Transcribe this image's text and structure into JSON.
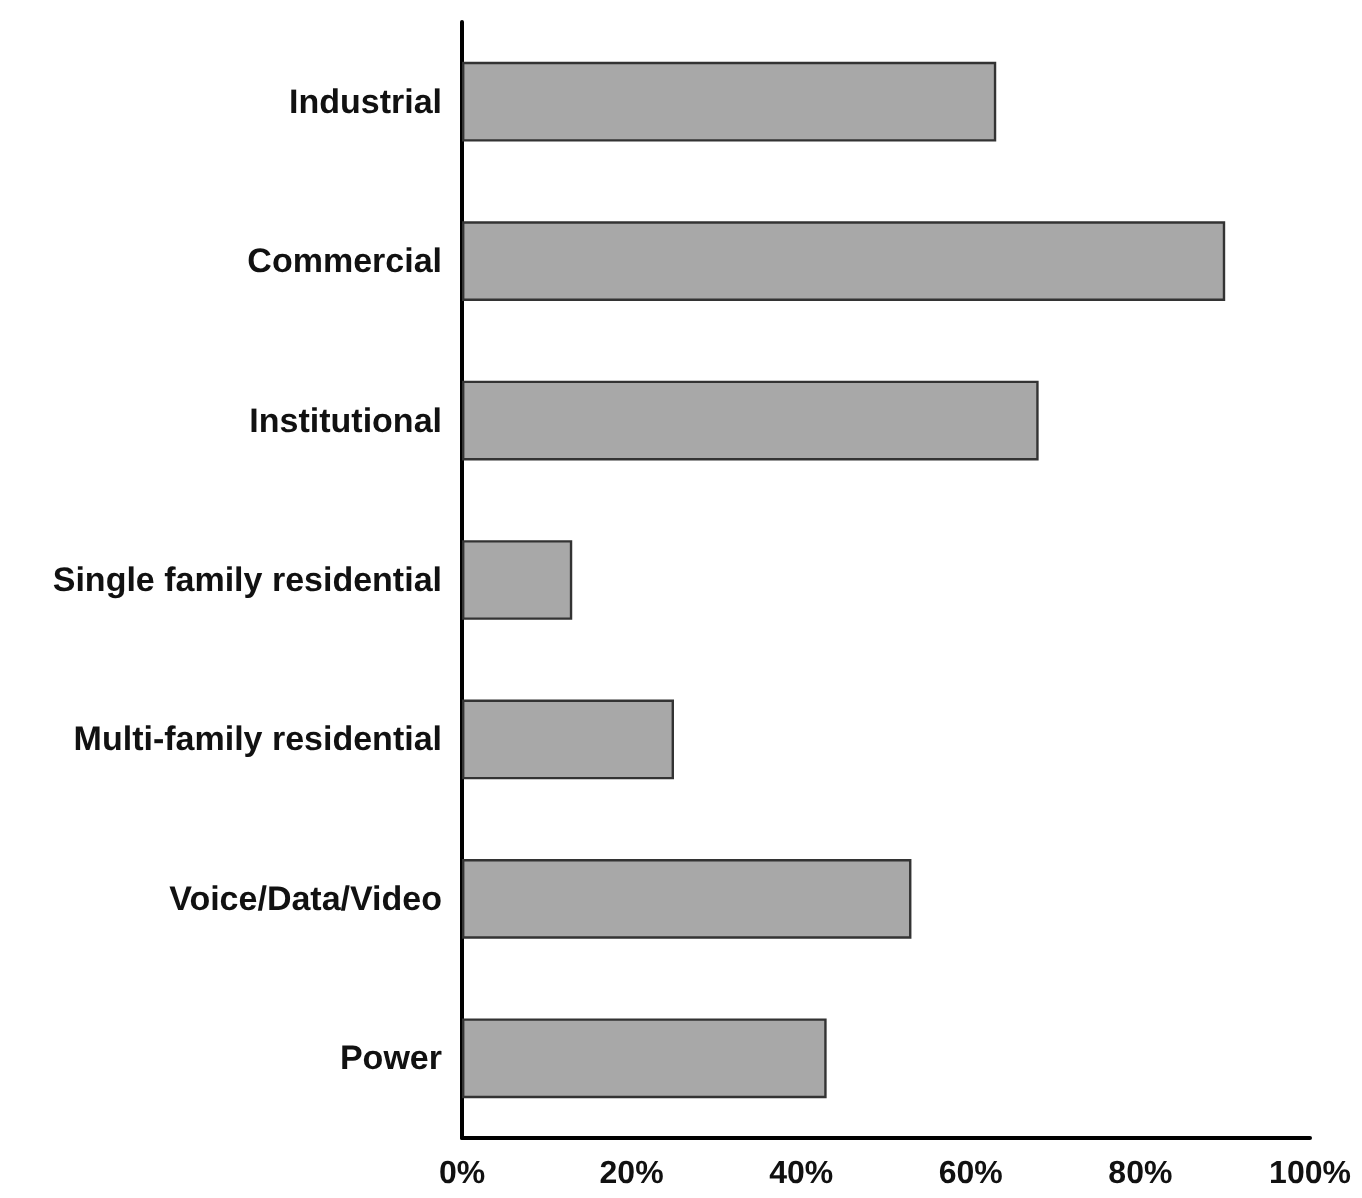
{
  "chart_data": {
    "type": "bar",
    "orientation": "horizontal",
    "categories": [
      "Industrial",
      "Commercial",
      "Institutional",
      "Single family residential",
      "Multi-family residential",
      "Voice/Data/Video",
      "Power"
    ],
    "values": [
      63,
      90,
      68,
      13,
      25,
      53,
      43
    ],
    "color": "#a8a8a8",
    "xlim": [
      0,
      100
    ],
    "xticks": [
      {
        "value": 0,
        "label": "0%"
      },
      {
        "value": 20,
        "label": "20%"
      },
      {
        "value": 40,
        "label": "40%"
      },
      {
        "value": 60,
        "label": "60%"
      },
      {
        "value": 80,
        "label": "80%"
      },
      {
        "value": 100,
        "label": "100%"
      }
    ],
    "grid": false
  }
}
